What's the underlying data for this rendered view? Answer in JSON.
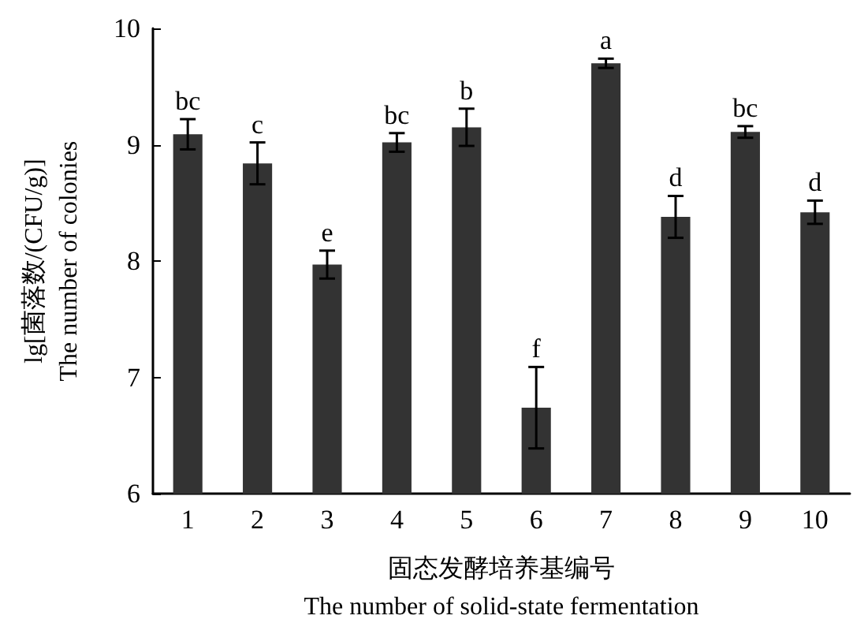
{
  "chart_data": {
    "type": "bar",
    "xlabel": "固态发酵培养基编号\nThe number of solid-state fermentation",
    "ylabel": "lg[菌落数/(CFU/g)]\nThe number of colonies",
    "categories": [
      "1",
      "2",
      "3",
      "4",
      "5",
      "6",
      "7",
      "8",
      "9",
      "10"
    ],
    "values": [
      9.09,
      8.84,
      7.97,
      9.02,
      9.15,
      6.74,
      9.7,
      8.38,
      9.11,
      8.42
    ],
    "errors": [
      0.13,
      0.18,
      0.12,
      0.08,
      0.16,
      0.35,
      0.04,
      0.18,
      0.05,
      0.1
    ],
    "color": "#333333",
    "ylim": [
      6,
      10
    ],
    "yticks": [
      6,
      7,
      8,
      9,
      10
    ],
    "grid": false,
    "annotations": [
      {
        "text": "bc",
        "x": "1",
        "y": 9.22
      },
      {
        "text": "c",
        "x": "2",
        "y": 9.02
      },
      {
        "text": "e",
        "x": "3",
        "y": 8.09
      },
      {
        "text": "bc",
        "x": "4",
        "y": 9.1
      },
      {
        "text": "b",
        "x": "5",
        "y": 9.31
      },
      {
        "text": "f",
        "x": "6",
        "y": 7.09
      },
      {
        "text": "a",
        "x": "7",
        "y": 9.74
      },
      {
        "text": "d",
        "x": "8",
        "y": 8.56
      },
      {
        "text": "bc",
        "x": "9",
        "y": 9.16
      },
      {
        "text": "d",
        "x": "10",
        "y": 8.52
      }
    ]
  }
}
